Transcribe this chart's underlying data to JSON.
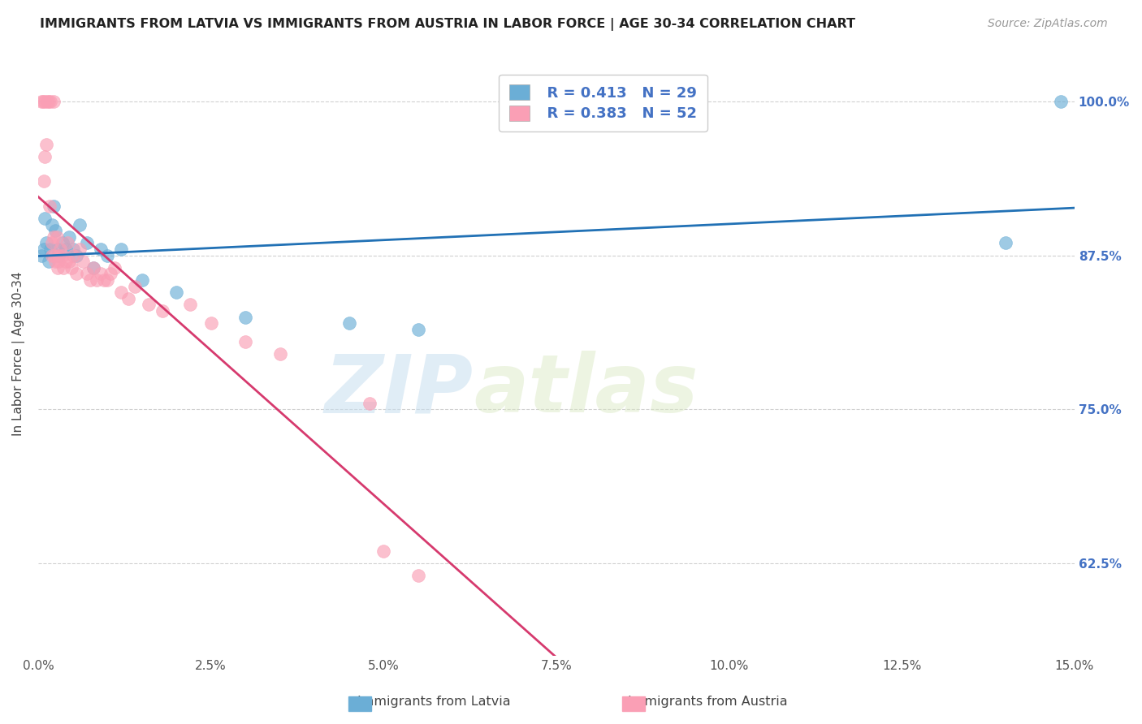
{
  "title": "IMMIGRANTS FROM LATVIA VS IMMIGRANTS FROM AUSTRIA IN LABOR FORCE | AGE 30-34 CORRELATION CHART",
  "source": "Source: ZipAtlas.com",
  "xlabel_ticks": [
    "0.0%",
    "2.5%",
    "5.0%",
    "7.5%",
    "10.0%",
    "12.5%",
    "15.0%"
  ],
  "xlabel_vals": [
    0.0,
    2.5,
    5.0,
    7.5,
    10.0,
    12.5,
    15.0
  ],
  "ylabel_ticks": [
    "62.5%",
    "75.0%",
    "87.5%",
    "100.0%"
  ],
  "ylabel_vals": [
    62.5,
    75.0,
    87.5,
    100.0
  ],
  "xmin": 0.0,
  "xmax": 15.0,
  "ymin": 55.0,
  "ymax": 104.0,
  "ylabel": "In Labor Force | Age 30-34",
  "legend_latvia": "Immigrants from Latvia",
  "legend_austria": "Immigrants from Austria",
  "r_latvia": "R = 0.413",
  "n_latvia": "N = 29",
  "r_austria": "R = 0.383",
  "n_austria": "N = 52",
  "color_latvia": "#6baed6",
  "color_austria": "#fa9fb5",
  "color_line_latvia": "#2171b5",
  "color_line_austria": "#d63a6e",
  "watermark_zip": "ZIP",
  "watermark_atlas": "atlas",
  "background_color": "#ffffff",
  "grid_color": "#d0d0d0",
  "latvia_x": [
    0.05,
    0.08,
    0.1,
    0.12,
    0.15,
    0.18,
    0.2,
    0.22,
    0.25,
    0.28,
    0.3,
    0.35,
    0.4,
    0.45,
    0.5,
    0.55,
    0.6,
    0.7,
    0.8,
    0.9,
    1.0,
    1.2,
    1.5,
    2.0,
    3.0,
    4.5,
    5.5,
    14.0,
    14.8
  ],
  "latvia_y": [
    87.5,
    88.0,
    90.5,
    88.5,
    87.0,
    88.0,
    90.0,
    91.5,
    89.5,
    88.0,
    87.5,
    88.5,
    88.0,
    89.0,
    88.0,
    87.5,
    90.0,
    88.5,
    86.5,
    88.0,
    87.5,
    88.0,
    85.5,
    84.5,
    82.5,
    82.0,
    81.5,
    88.5,
    100.0
  ],
  "austria_x": [
    0.05,
    0.07,
    0.08,
    0.1,
    0.1,
    0.12,
    0.13,
    0.15,
    0.16,
    0.18,
    0.2,
    0.2,
    0.22,
    0.22,
    0.24,
    0.25,
    0.27,
    0.28,
    0.3,
    0.3,
    0.32,
    0.35,
    0.37,
    0.4,
    0.42,
    0.45,
    0.48,
    0.5,
    0.55,
    0.6,
    0.65,
    0.7,
    0.75,
    0.8,
    0.85,
    0.9,
    0.95,
    1.0,
    1.05,
    1.1,
    1.2,
    1.3,
    1.4,
    1.6,
    1.8,
    2.2,
    2.5,
    3.0,
    3.5,
    4.8,
    5.0,
    5.5
  ],
  "austria_y": [
    100.0,
    100.0,
    93.5,
    95.5,
    100.0,
    96.5,
    100.0,
    100.0,
    91.5,
    100.0,
    88.5,
    87.5,
    100.0,
    89.0,
    87.5,
    87.0,
    89.0,
    86.5,
    87.5,
    87.0,
    88.0,
    87.5,
    86.5,
    87.0,
    88.5,
    87.0,
    86.5,
    87.5,
    86.0,
    88.0,
    87.0,
    86.0,
    85.5,
    86.5,
    85.5,
    86.0,
    85.5,
    85.5,
    86.0,
    86.5,
    84.5,
    84.0,
    85.0,
    83.5,
    83.0,
    83.5,
    82.0,
    80.5,
    79.5,
    75.5,
    63.5,
    61.5
  ]
}
